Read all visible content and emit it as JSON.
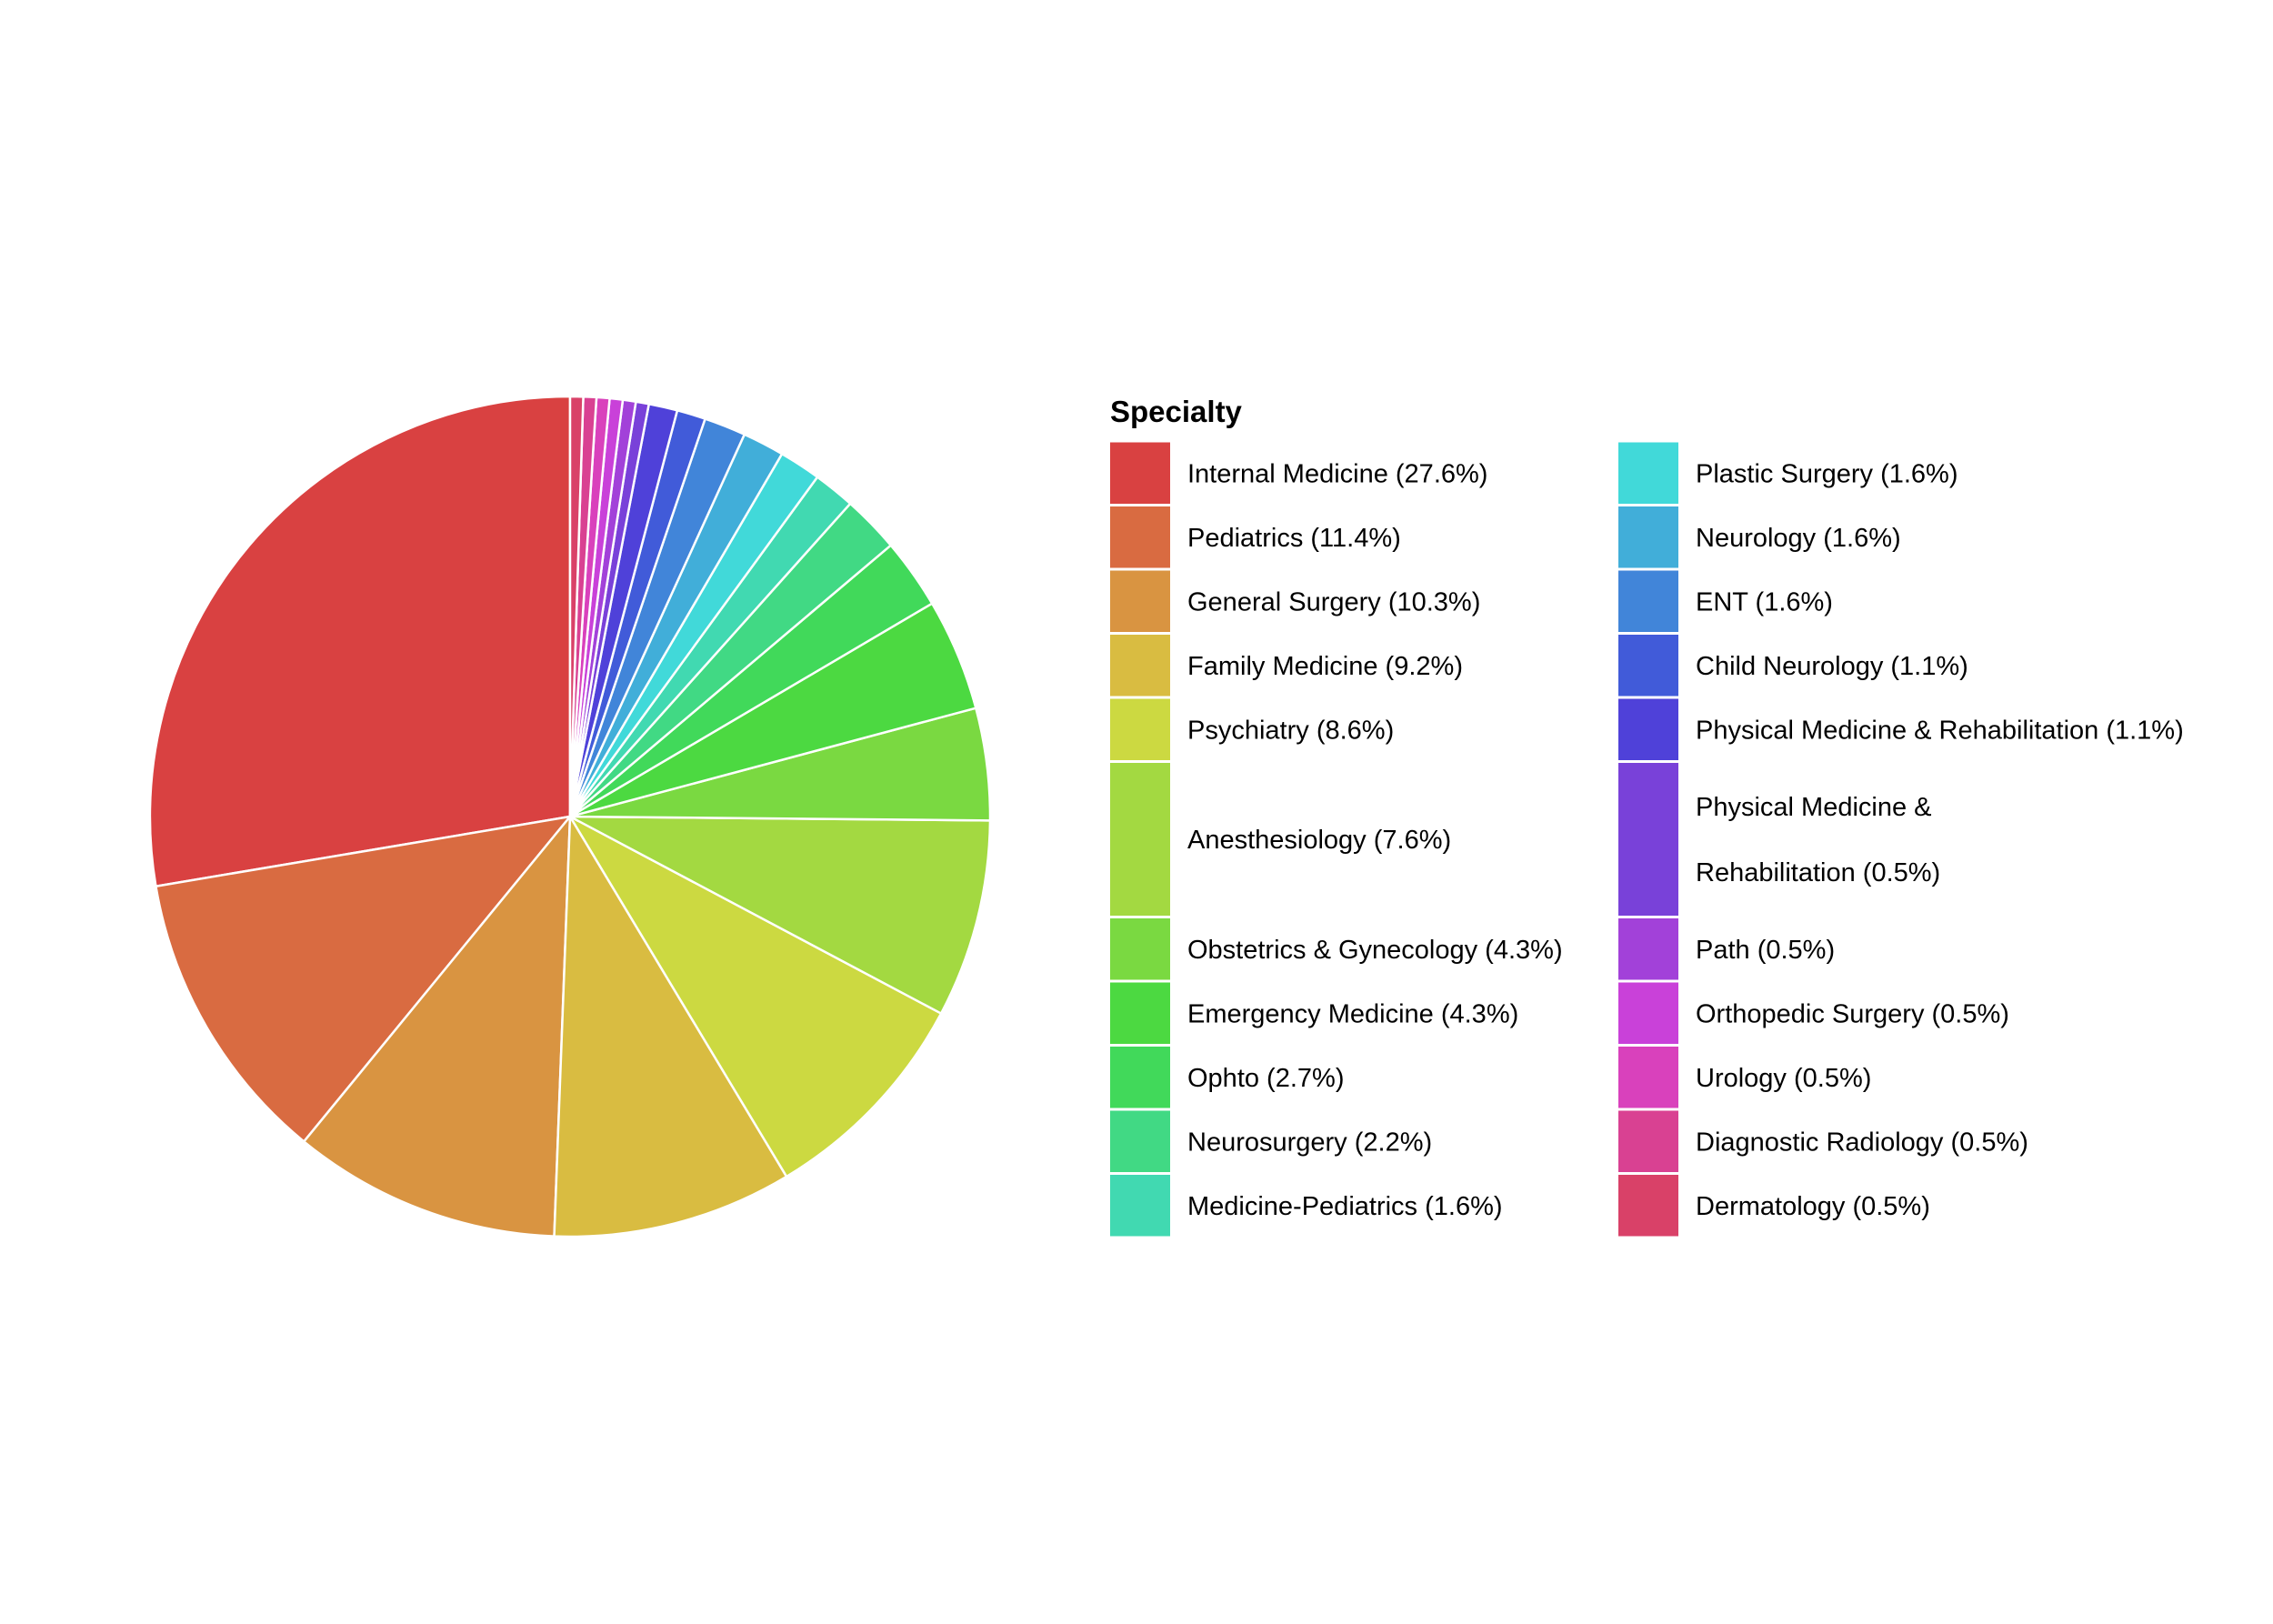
{
  "chart_data": {
    "type": "pie",
    "legend_title": "Specialty",
    "legend_position": "right",
    "legend_columns": 2,
    "slice_border_color": "#ffffff",
    "series": [
      {
        "label": "Internal Medicine (27.6%)",
        "value": 27.6,
        "color": "#D94141"
      },
      {
        "label": "Pediatrics (11.4%)",
        "value": 11.4,
        "color": "#D96B41"
      },
      {
        "label": "General Surgery (10.3%)",
        "value": 10.3,
        "color": "#D99441"
      },
      {
        "label": "Family Medicine (9.2%)",
        "value": 9.2,
        "color": "#D9BC41"
      },
      {
        "label": "Psychiatry (8.6%)",
        "value": 8.6,
        "color": "#CCD941"
      },
      {
        "label": "Anesthesiology (7.6%)",
        "value": 7.6,
        "color": "#A3D941"
      },
      {
        "label": "Obstetrics & Gynecology (4.3%)",
        "value": 4.3,
        "color": "#7AD941"
      },
      {
        "label": "Emergency Medicine (4.3%)",
        "value": 4.3,
        "color": "#4CD941"
      },
      {
        "label": "Ophto (2.7%)",
        "value": 2.7,
        "color": "#41D95A"
      },
      {
        "label": "Neurosurgery (2.2%)",
        "value": 2.2,
        "color": "#41D984"
      },
      {
        "label": "Medicine-Pediatrics (1.6%)",
        "value": 1.6,
        "color": "#41D9B1"
      },
      {
        "label": "Plastic Surgery (1.6%)",
        "value": 1.6,
        "color": "#41D9D9"
      },
      {
        "label": "Neurology (1.6%)",
        "value": 1.6,
        "color": "#41AED9"
      },
      {
        "label": "ENT (1.6%)",
        "value": 1.6,
        "color": "#4185D9"
      },
      {
        "label": "Child Neurology (1.1%)",
        "value": 1.1,
        "color": "#415BD9"
      },
      {
        "label": "Physical Medicine & Rehabilitation (1.1%)",
        "value": 1.1,
        "color": "#4F41D9"
      },
      {
        "label": "Physical Medicine &\n\nRehabilitation (0.5%)",
        "value": 0.5,
        "color": "#7941D9"
      },
      {
        "label": "Path (0.5%)",
        "value": 0.5,
        "color": "#A241D9"
      },
      {
        "label": "Orthopedic Surgery (0.5%)",
        "value": 0.5,
        "color": "#C941D9"
      },
      {
        "label": "Urology (0.5%)",
        "value": 0.5,
        "color": "#D941BC"
      },
      {
        "label": "Diagnostic Radiology (0.5%)",
        "value": 0.5,
        "color": "#D94192"
      },
      {
        "label": "Dermatology (0.5%)",
        "value": 0.5,
        "color": "#D94168"
      }
    ]
  }
}
